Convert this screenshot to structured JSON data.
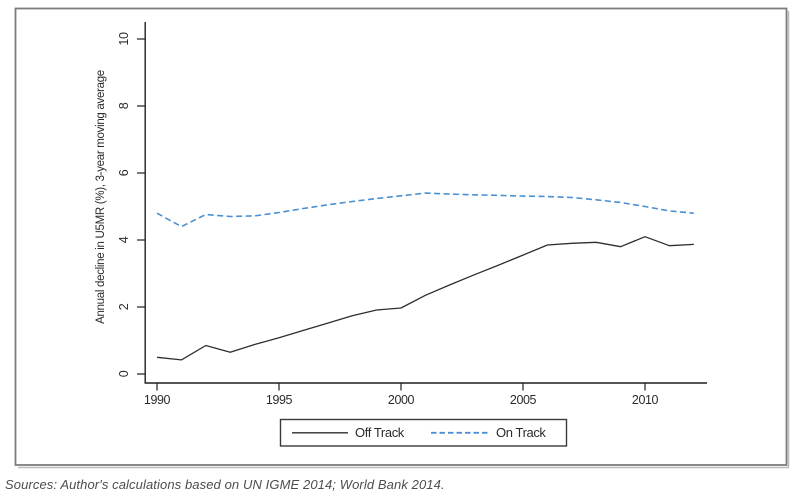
{
  "figure": {
    "source_note": "Sources: Author's calculations based on UN IGME 2014; World Bank 2014."
  },
  "colors": {
    "frame_border": "#7d7d7d",
    "frame_shadow": "#bcbcbc",
    "axis": "#1f1f1f",
    "text": "#2b2b2b",
    "source_text": "#4d4d4d",
    "off_track_line": "#2e2e2e",
    "on_track_line": "#4a90d2"
  },
  "chart_data": {
    "type": "line",
    "title": "",
    "xlabel": "",
    "ylabel": "Annual decline in U5MR (%), 3-year moving average",
    "xlim": [
      1990,
      2012
    ],
    "ylim": [
      0,
      10
    ],
    "xticks": [
      "1990",
      "1995",
      "2000",
      "2005",
      "2010"
    ],
    "yticks": [
      "0",
      "2",
      "4",
      "6",
      "8",
      "10"
    ],
    "grid": "off",
    "legend_position": "bottom-center-boxed",
    "x": [
      1990,
      1991,
      1992,
      1993,
      1994,
      1995,
      1996,
      1997,
      1998,
      1999,
      2000,
      2001,
      2002,
      2003,
      2004,
      2005,
      2006,
      2007,
      2008,
      2009,
      2010,
      2011,
      2012
    ],
    "series": [
      {
        "name": "Off Track",
        "style": "solid",
        "color": "#2e2e2e",
        "values": [
          0.5,
          0.42,
          0.85,
          0.65,
          0.88,
          1.08,
          1.3,
          1.52,
          1.74,
          1.91,
          1.97,
          2.35,
          2.66,
          2.96,
          3.25,
          3.55,
          3.85,
          3.9,
          3.93,
          3.8,
          4.1,
          3.83,
          3.87
        ]
      },
      {
        "name": "On Track",
        "style": "dashed",
        "color": "#4a90d2",
        "values": [
          4.8,
          4.4,
          4.76,
          4.7,
          4.72,
          4.82,
          4.94,
          5.05,
          5.15,
          5.24,
          5.32,
          5.4,
          5.37,
          5.35,
          5.33,
          5.31,
          5.3,
          5.27,
          5.2,
          5.12,
          5.0,
          4.87,
          4.8
        ]
      }
    ]
  }
}
